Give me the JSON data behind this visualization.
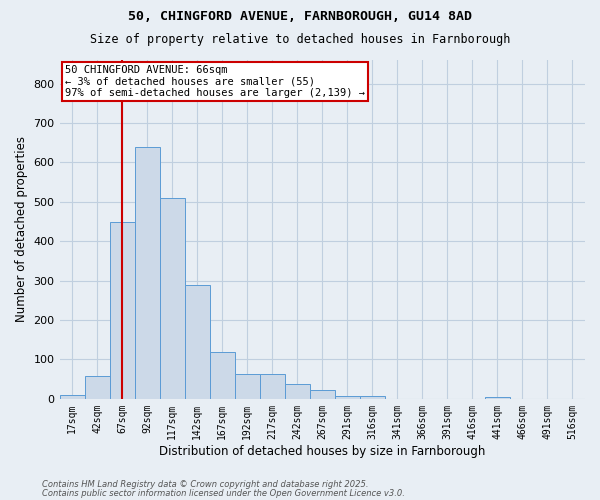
{
  "title1": "50, CHINGFORD AVENUE, FARNBOROUGH, GU14 8AD",
  "title2": "Size of property relative to detached houses in Farnborough",
  "xlabel": "Distribution of detached houses by size in Farnborough",
  "ylabel": "Number of detached properties",
  "bar_labels": [
    "17sqm",
    "42sqm",
    "67sqm",
    "92sqm",
    "117sqm",
    "142sqm",
    "167sqm",
    "192sqm",
    "217sqm",
    "242sqm",
    "267sqm",
    "291sqm",
    "316sqm",
    "341sqm",
    "366sqm",
    "391sqm",
    "416sqm",
    "441sqm",
    "466sqm",
    "491sqm",
    "516sqm"
  ],
  "bar_heights": [
    10,
    57,
    450,
    640,
    510,
    290,
    120,
    63,
    63,
    38,
    22,
    8,
    8,
    0,
    0,
    0,
    0,
    5,
    0,
    0,
    0
  ],
  "bar_color": "#ccd9e8",
  "bar_edge_color": "#5b9bd5",
  "vline_x_index": 2,
  "vline_color": "#cc0000",
  "annotation_text": "50 CHINGFORD AVENUE: 66sqm\n← 3% of detached houses are smaller (55)\n97% of semi-detached houses are larger (2,139) →",
  "annotation_box_color": "#cc0000",
  "annotation_text_color": "#000000",
  "annotation_bg": "#ffffff",
  "ylim": [
    0,
    860
  ],
  "yticks": [
    0,
    100,
    200,
    300,
    400,
    500,
    600,
    700,
    800
  ],
  "grid_color": "#c0cfdf",
  "bg_color": "#e8eef4",
  "footer1": "Contains HM Land Registry data © Crown copyright and database right 2025.",
  "footer2": "Contains public sector information licensed under the Open Government Licence v3.0."
}
